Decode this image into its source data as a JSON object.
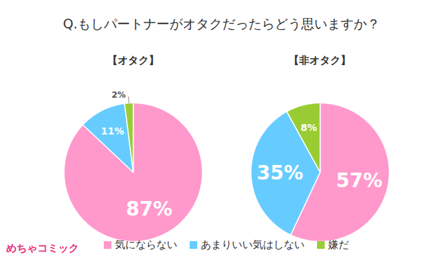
{
  "title": "Q.もしパートナーがオタクだったらどう思いますか？",
  "legend": "bottom",
  "logo": "めちゃコミック",
  "chart_data": [
    {
      "type": "pie",
      "title": "【オタク】",
      "categories": [
        "気にならない",
        "あまりいい気はしない",
        "嫌だ"
      ],
      "values": [
        87,
        11,
        2
      ],
      "value_labels": [
        "87%",
        "11%",
        "2%"
      ],
      "colors": [
        "#ff99cc",
        "#66ccff",
        "#99cc33"
      ],
      "data_labels": true
    },
    {
      "type": "pie",
      "title": "【非オタク】",
      "categories": [
        "気にならない",
        "あまりいい気はしない",
        "嫌だ"
      ],
      "values": [
        57,
        35,
        8
      ],
      "value_labels": [
        "57%",
        "35%",
        "8%"
      ],
      "colors": [
        "#ff99cc",
        "#66ccff",
        "#99cc33"
      ],
      "data_labels": true
    }
  ]
}
